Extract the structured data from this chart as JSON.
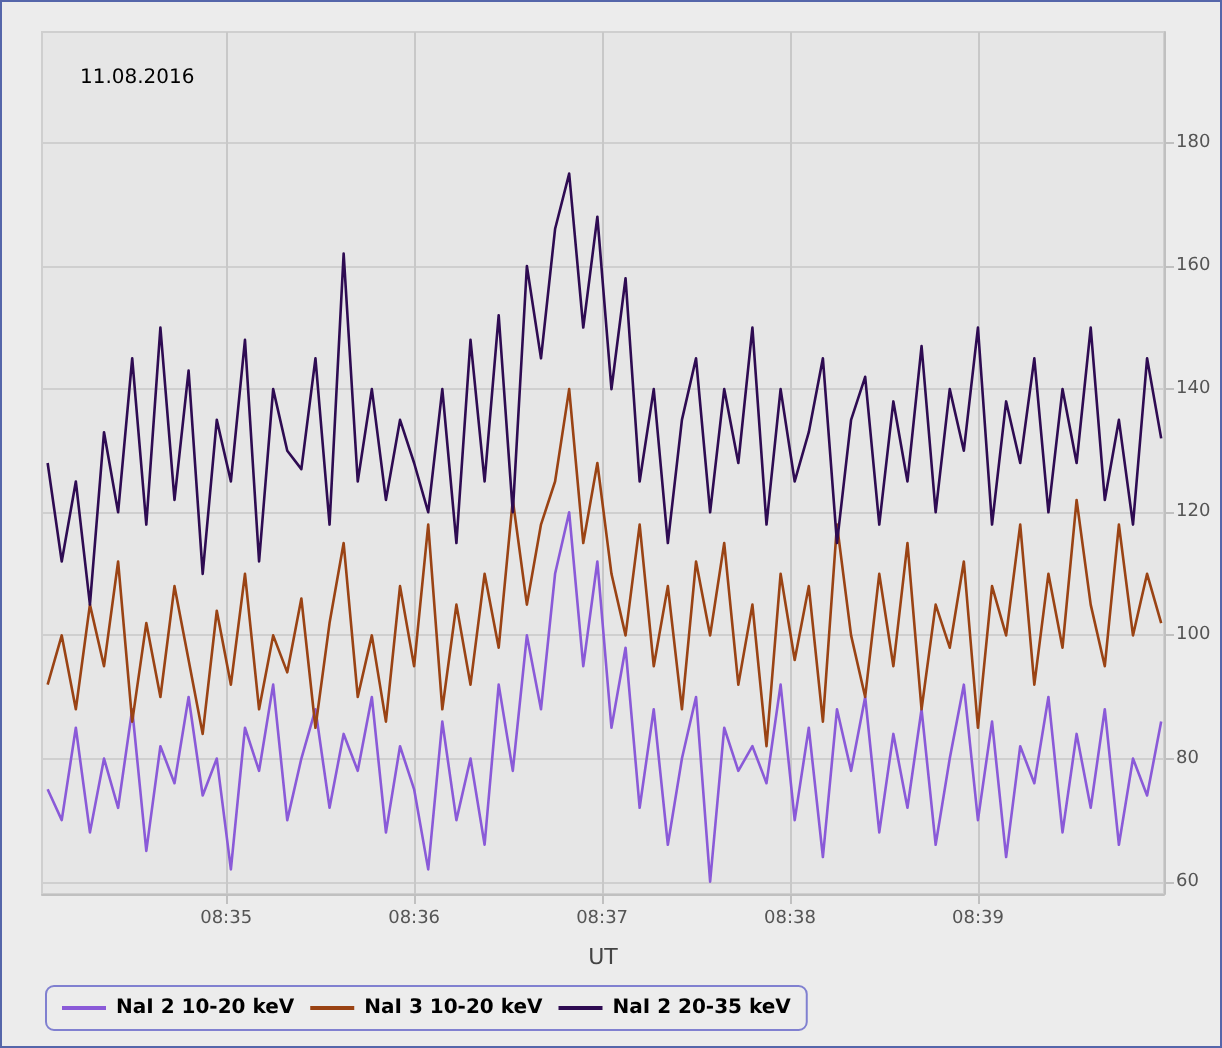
{
  "chart_data": {
    "type": "line",
    "title": "11.08.2016",
    "xlabel": "UT",
    "x": [
      8.5675,
      8.56875,
      8.57,
      8.57125,
      8.5725,
      8.57375,
      8.575,
      8.57625,
      8.5775,
      8.57875,
      8.58,
      8.58125,
      8.5825,
      8.58375,
      8.585,
      8.58625,
      8.5875,
      8.58875,
      8.59,
      8.59125,
      8.5925,
      8.59375,
      8.595,
      8.59625,
      8.5975,
      8.59875,
      8.6,
      8.60125,
      8.6025,
      8.60375,
      8.605,
      8.60625,
      8.6075,
      8.60875,
      8.61,
      8.61125,
      8.6125,
      8.61375,
      8.615,
      8.61625,
      8.6175,
      8.61875,
      8.62,
      8.62125,
      8.6225,
      8.62375,
      8.625,
      8.62625,
      8.6275,
      8.62875,
      8.63,
      8.63125,
      8.6325,
      8.63375,
      8.635,
      8.63625,
      8.6375,
      8.63875,
      8.64,
      8.64125,
      8.6425,
      8.64375,
      8.645,
      8.64625,
      8.6475,
      8.64875,
      8.65,
      8.65125,
      8.6525,
      8.65375,
      8.655,
      8.65625,
      8.6575,
      8.65875,
      8.66,
      8.66125,
      8.6625,
      8.66375,
      8.665,
      8.66625
    ],
    "series": [
      {
        "name": "NaI 2 10-20 keV",
        "color": "#8a5ad8",
        "values": [
          75,
          70,
          85,
          68,
          80,
          72,
          88,
          65,
          82,
          76,
          90,
          74,
          80,
          62,
          85,
          78,
          92,
          70,
          80,
          88,
          72,
          84,
          78,
          90,
          68,
          82,
          75,
          62,
          86,
          70,
          80,
          66,
          92,
          78,
          100,
          88,
          110,
          120,
          95,
          112,
          85,
          98,
          72,
          88,
          66,
          80,
          90,
          60,
          85,
          78,
          82,
          76,
          92,
          70,
          85,
          64,
          88,
          78,
          90,
          68,
          84,
          72,
          88,
          66,
          80,
          92,
          70,
          86,
          64,
          82,
          76,
          90,
          68,
          84,
          72,
          88,
          66,
          80,
          74,
          86
        ]
      },
      {
        "name": "NaI 3 10-20 keV",
        "color": "#9a4314",
        "values": [
          92,
          100,
          88,
          105,
          95,
          112,
          86,
          102,
          90,
          108,
          96,
          84,
          104,
          92,
          110,
          88,
          100,
          94,
          106,
          85,
          102,
          115,
          90,
          100,
          86,
          108,
          95,
          118,
          88,
          105,
          92,
          110,
          98,
          122,
          105,
          118,
          125,
          140,
          115,
          128,
          110,
          100,
          118,
          95,
          108,
          88,
          112,
          100,
          115,
          92,
          105,
          82,
          110,
          96,
          108,
          86,
          118,
          100,
          90,
          110,
          95,
          115,
          88,
          105,
          98,
          112,
          85,
          108,
          100,
          118,
          92,
          110,
          98,
          122,
          105,
          95,
          118,
          100,
          110,
          102
        ]
      },
      {
        "name": "NaI 2 20-35 keV",
        "color": "#2e0b52",
        "values": [
          128,
          112,
          125,
          105,
          133,
          120,
          145,
          118,
          150,
          122,
          143,
          110,
          135,
          125,
          148,
          112,
          140,
          130,
          127,
          145,
          118,
          162,
          125,
          140,
          122,
          135,
          128,
          120,
          140,
          115,
          148,
          125,
          152,
          120,
          160,
          145,
          166,
          175,
          150,
          168,
          140,
          158,
          125,
          140,
          115,
          135,
          145,
          120,
          140,
          128,
          150,
          118,
          140,
          125,
          133,
          145,
          115,
          135,
          142,
          118,
          138,
          125,
          147,
          120,
          140,
          130,
          150,
          118,
          138,
          128,
          145,
          120,
          140,
          128,
          150,
          122,
          135,
          118,
          145,
          132
        ]
      }
    ],
    "xlim": [
      8.567,
      8.6665
    ],
    "xticks": [
      {
        "value": 8.58333,
        "label": "08:35"
      },
      {
        "value": 8.6,
        "label": "08:36"
      },
      {
        "value": 8.61667,
        "label": "08:37"
      },
      {
        "value": 8.63333,
        "label": "08:38"
      },
      {
        "value": 8.65,
        "label": "08:39"
      }
    ],
    "ylim": [
      58,
      198
    ],
    "yticks": [
      60,
      80,
      100,
      120,
      140,
      160,
      180
    ],
    "grid": true,
    "legend": "bottom left"
  }
}
